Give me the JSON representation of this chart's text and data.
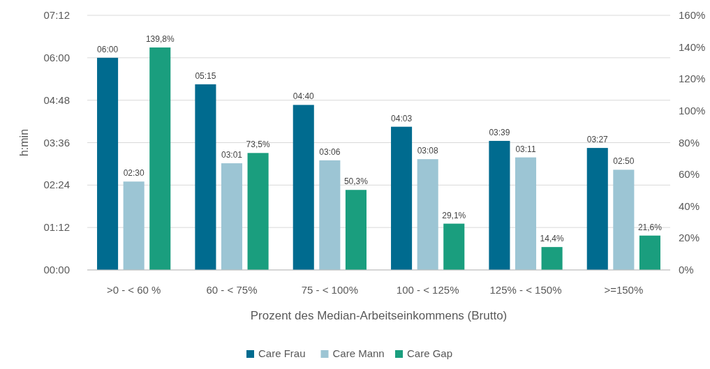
{
  "chart_data": {
    "type": "bar",
    "xlabel": "Prozent des Median-Arbeitseinkommens (Brutto)",
    "ylabel": "h:min",
    "categories": [
      ">0 - < 60 %",
      "60 - < 75%",
      "75 - < 100%",
      "100 - < 125%",
      "125% - < 150%",
      ">=150%"
    ],
    "series": [
      {
        "name": "Care Frau",
        "color": "#006b8f",
        "values": [
          6,
          5.25,
          4.6667,
          4.05,
          3.65,
          3.45
        ],
        "value_labels": [
          "06:00",
          "05:15",
          "04:40",
          "04:03",
          "03:39",
          "03:27"
        ]
      },
      {
        "name": "Care Mann",
        "color": "#9cc5d4",
        "values": [
          2.5,
          3.0167,
          3.1,
          3.1333,
          3.1833,
          2.8333
        ],
        "value_labels": [
          "02:30",
          "03:01",
          "03:06",
          "03:08",
          "03:11",
          "02:50"
        ]
      },
      {
        "name": "Care Gap",
        "color": "#1a9e7e",
        "axis": "y2",
        "values": [
          139.8,
          73.5,
          50.3,
          29.1,
          14.4,
          21.6
        ],
        "value_labels": [
          "139,8%",
          "73,5%",
          "50,3%",
          "29,1%",
          "14,4%",
          "21,6%"
        ]
      }
    ],
    "ylim": [
      0,
      7.2
    ],
    "yticks": [
      {
        "value": 0,
        "label": "00:00"
      },
      {
        "value": 1.2,
        "label": "01:12"
      },
      {
        "value": 2.4,
        "label": "02:24"
      },
      {
        "value": 3.6,
        "label": "03:36"
      },
      {
        "value": 4.8,
        "label": "04:48"
      },
      {
        "value": 6,
        "label": "06:00"
      },
      {
        "value": 7.2,
        "label": "07:12"
      }
    ],
    "y2lim": [
      0,
      160
    ],
    "y2ticks": [
      {
        "value": 0,
        "label": "0%"
      },
      {
        "value": 20,
        "label": "20%"
      },
      {
        "value": 40,
        "label": "40%"
      },
      {
        "value": 60,
        "label": "60%"
      },
      {
        "value": 80,
        "label": "80%"
      },
      {
        "value": 100,
        "label": "100%"
      },
      {
        "value": 120,
        "label": "120%"
      },
      {
        "value": 140,
        "label": "140%"
      },
      {
        "value": 160,
        "label": "160%"
      }
    ],
    "grid": "y",
    "legend": "bottom"
  }
}
